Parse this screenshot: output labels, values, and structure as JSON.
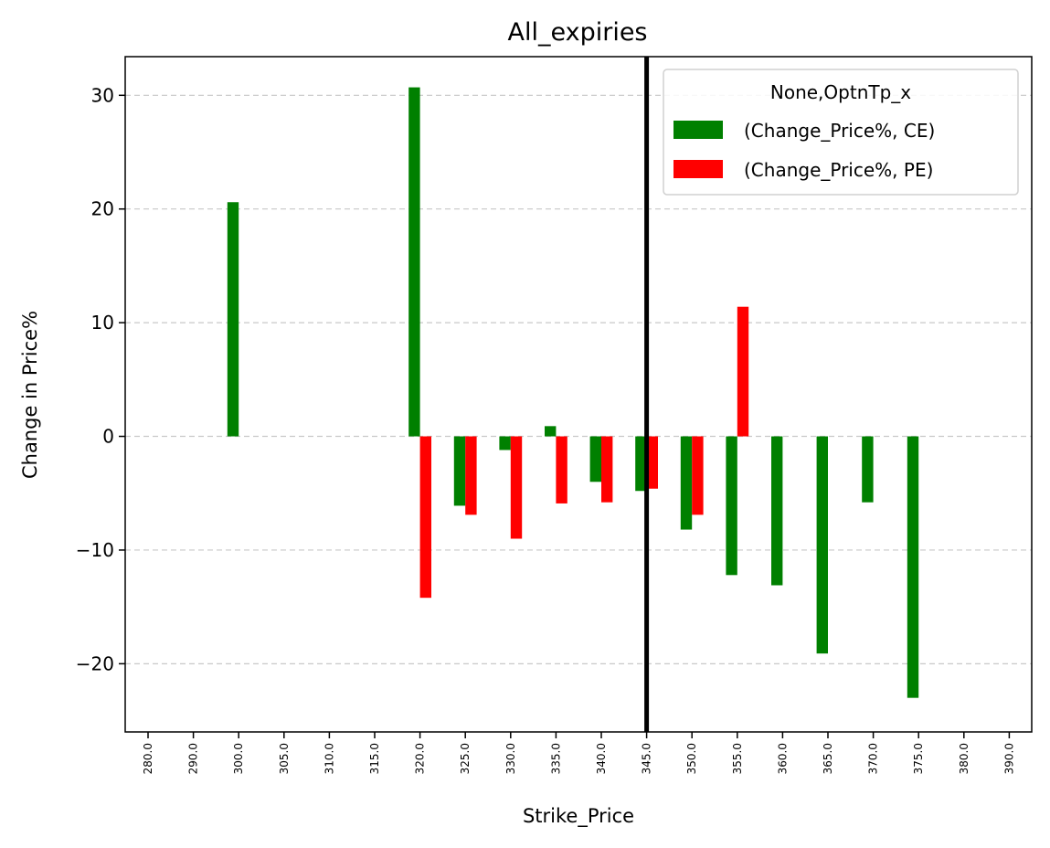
{
  "chart_data": {
    "type": "bar",
    "title": "All_expiries",
    "xlabel": "Strike_Price",
    "ylabel": "Change in Price%",
    "ylim": [
      -26,
      33.4
    ],
    "yticks": [
      -20,
      -10,
      0,
      10,
      20,
      30
    ],
    "ytick_labels": [
      "−20",
      "−10",
      "0",
      "10",
      "20",
      "30"
    ],
    "categories": [
      "280.0",
      "290.0",
      "300.0",
      "305.0",
      "310.0",
      "315.0",
      "320.0",
      "325.0",
      "330.0",
      "335.0",
      "340.0",
      "345.0",
      "350.0",
      "355.0",
      "360.0",
      "365.0",
      "370.0",
      "375.0",
      "380.0",
      "390.0"
    ],
    "series": [
      {
        "name": "(Change_Price%, CE)",
        "color": "#008000",
        "values": [
          null,
          null,
          20.6,
          null,
          null,
          null,
          30.7,
          -6.1,
          -1.2,
          0.9,
          -4.0,
          -4.8,
          -8.2,
          -12.2,
          -13.1,
          -19.1,
          -5.8,
          -23.0,
          null,
          null
        ]
      },
      {
        "name": "(Change_Price%, PE)",
        "color": "#ff0000",
        "values": [
          null,
          null,
          null,
          null,
          null,
          null,
          -14.2,
          -6.9,
          -9.0,
          -5.9,
          -5.8,
          -4.6,
          -6.9,
          11.4,
          null,
          null,
          null,
          null,
          null,
          null
        ]
      }
    ],
    "vline": {
      "category": "345.0",
      "color": "#000000"
    },
    "legend": {
      "title": "None,OptnTp_x",
      "position": "top-right"
    },
    "grid": {
      "y": true,
      "style": "dashed"
    }
  }
}
